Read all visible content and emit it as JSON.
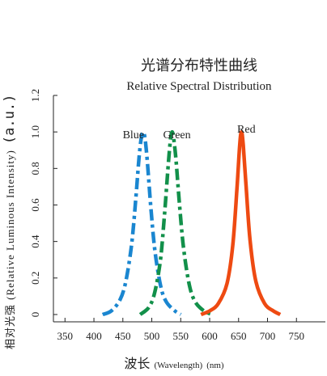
{
  "chart_data": {
    "type": "line",
    "title": "光谱分布特性曲线",
    "subtitle": "Relative Spectral Distribution",
    "xlabel": {
      "main": "波长",
      "en": "(Wavelength)",
      "unit": "(nm)"
    },
    "ylabel": {
      "main": "相对光强",
      "en": "(Relative Luminous Intensity)",
      "unit": "(a.u.)"
    },
    "xlim": [
      330,
      800
    ],
    "ylim": [
      -0.04,
      1.2
    ],
    "x_ticks": [
      "350",
      "400",
      "450",
      "500",
      "550",
      "600",
      "650",
      "700",
      "750"
    ],
    "y_ticks": [
      "0",
      "0.2",
      "0.4",
      "0.6",
      "0.8",
      "1.0",
      "1.2"
    ],
    "grid": false,
    "series": [
      {
        "name": "Blue",
        "color": "#1a86d0",
        "line_style": "dash-dot",
        "peak": 485,
        "x": [
          415,
          430,
          445,
          455,
          465,
          472,
          478,
          482,
          485,
          488,
          492,
          498,
          505,
          515,
          525,
          540,
          550
        ],
        "values": [
          0.0,
          0.02,
          0.08,
          0.18,
          0.38,
          0.62,
          0.86,
          0.97,
          1.0,
          0.97,
          0.85,
          0.6,
          0.36,
          0.16,
          0.07,
          0.02,
          0.0
        ]
      },
      {
        "name": "Green",
        "color": "#12904a",
        "line_style": "dash-dot",
        "peak": 535,
        "x": [
          480,
          495,
          505,
          515,
          522,
          528,
          532,
          535,
          538,
          542,
          548,
          555,
          565,
          575,
          590,
          605
        ],
        "values": [
          0.0,
          0.04,
          0.12,
          0.3,
          0.55,
          0.8,
          0.95,
          1.0,
          0.96,
          0.84,
          0.6,
          0.36,
          0.16,
          0.07,
          0.02,
          0.0
        ]
      },
      {
        "name": "Red",
        "color": "#ee4a12",
        "line_style": "solid",
        "peak": 655,
        "x": [
          585,
          600,
          615,
          630,
          640,
          647,
          652,
          655,
          658,
          663,
          670,
          680,
          695,
          710,
          722
        ],
        "values": [
          0.0,
          0.02,
          0.06,
          0.17,
          0.38,
          0.68,
          0.93,
          1.0,
          0.93,
          0.7,
          0.4,
          0.18,
          0.06,
          0.02,
          0.0
        ]
      }
    ]
  }
}
